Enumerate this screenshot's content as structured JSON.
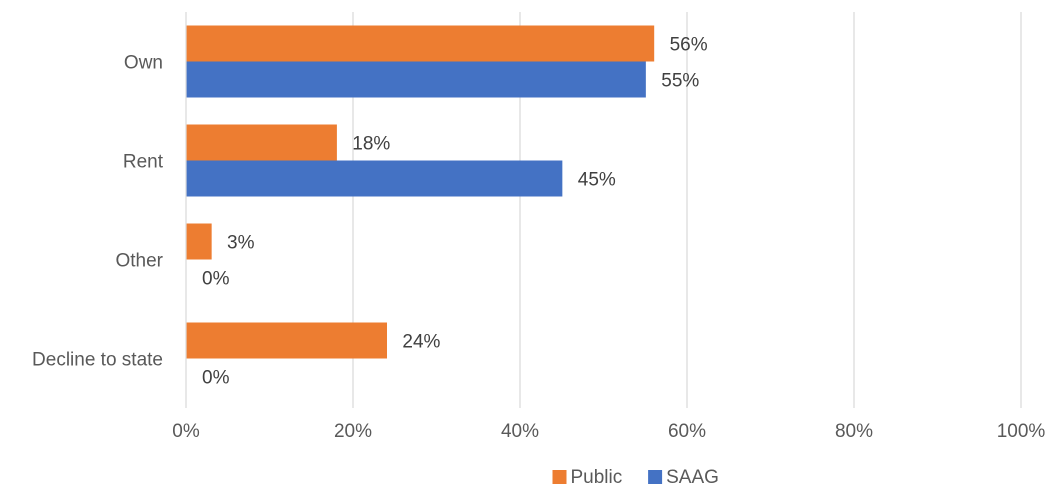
{
  "chart_data": {
    "type": "bar",
    "orientation": "horizontal",
    "categories": [
      "Own",
      "Rent",
      "Other",
      "Decline to state"
    ],
    "series": [
      {
        "name": "Public",
        "values": [
          56,
          18,
          3,
          24
        ],
        "labels": [
          "56%",
          "18%",
          "3%",
          "24%"
        ],
        "color": "#ED7D31"
      },
      {
        "name": "SAAG",
        "values": [
          55,
          45,
          0,
          0
        ],
        "labels": [
          "55%",
          "45%",
          "0%",
          "0%"
        ],
        "color": "#4472C4"
      }
    ],
    "xlim": [
      0,
      100
    ],
    "x_ticks": [
      0,
      20,
      40,
      60,
      80,
      100
    ],
    "x_tick_labels": [
      "0%",
      "20%",
      "40%",
      "60%",
      "80%",
      "100%"
    ],
    "grid": "vertical",
    "legend": "bottom",
    "title": "",
    "xlabel": "",
    "ylabel": ""
  }
}
